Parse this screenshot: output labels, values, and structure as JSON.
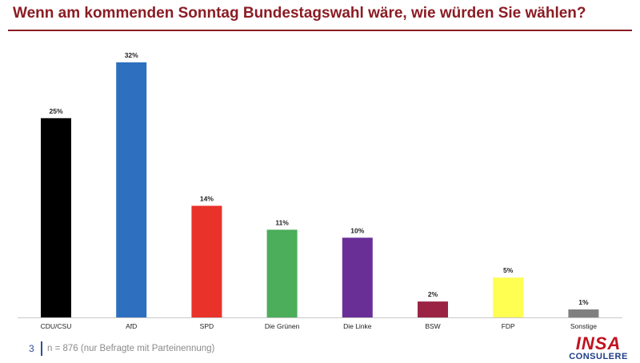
{
  "title": "Wenn am kommenden Sonntag Bundestagswahl wäre, wie würden Sie wählen?",
  "footer": {
    "page_number": "3",
    "note": "n = 876 (nur Befragte mit Parteinennung)"
  },
  "logo": {
    "main": "INSA",
    "sub": "CONSULERE"
  },
  "colors": {
    "title": "#8b1c24",
    "accent_blue": "#2f4f8f",
    "logo_red": "#c1121f"
  },
  "chart_data": {
    "type": "bar",
    "title": "",
    "xlabel": "",
    "ylabel": "",
    "ylim": [
      0,
      32
    ],
    "grid": false,
    "categories": [
      "CDU/CSU",
      "AfD",
      "SPD",
      "Die Grünen",
      "Die Linke",
      "BSW",
      "FDP",
      "Sonstige"
    ],
    "values": [
      25,
      32,
      14,
      11,
      10,
      2,
      5,
      1
    ],
    "labels": [
      "25%",
      "32%",
      "14%",
      "11%",
      "10%",
      "2%",
      "5%",
      "1%"
    ],
    "colors": [
      "#000000",
      "#2e6fc0",
      "#e8322a",
      "#4cad5b",
      "#6a2f97",
      "#9b2445",
      "#ffff52",
      "#808080"
    ]
  }
}
